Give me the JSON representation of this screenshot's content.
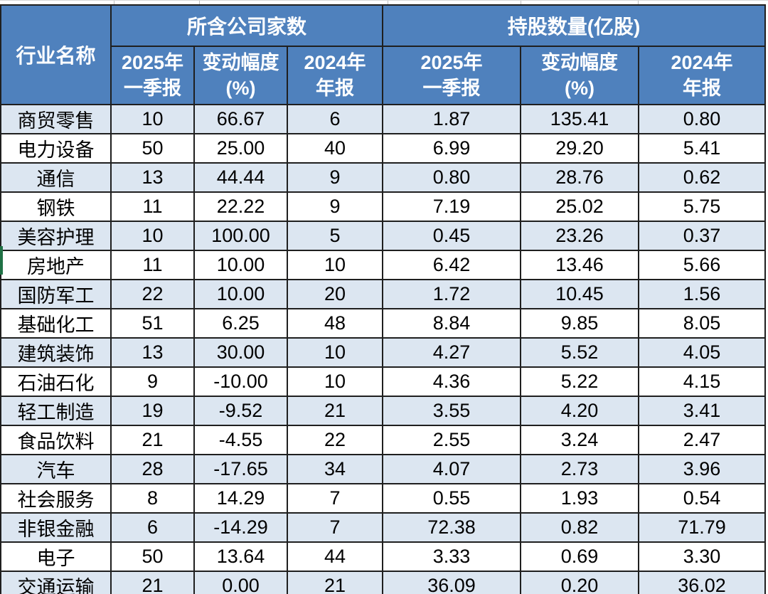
{
  "colors": {
    "header_bg": "#4F81BD",
    "header_text": "#FFFFFF",
    "row_alt_bg": "#DCE6F1",
    "row_bg": "#FFFFFF",
    "grid_border": "#1F1F1F",
    "cell_text": "#000000",
    "left_marker_green": "#1F7145",
    "outer_gridline": "#BFBFBF"
  },
  "table": {
    "corner_header": "行业名称",
    "groups": [
      {
        "label": "所含公司家数"
      },
      {
        "label": "持股数量(亿股)"
      }
    ],
    "sub_headers": [
      {
        "line1": "2025年",
        "line2": "一季报"
      },
      {
        "line1": "变动幅度",
        "line2": "(%)"
      },
      {
        "line1": "2024年",
        "line2": "年报"
      },
      {
        "line1": "2025年",
        "line2": "一季报"
      },
      {
        "line1": "变动幅度",
        "line2": "(%)"
      },
      {
        "line1": "2024年",
        "line2": "年报"
      }
    ],
    "rows": [
      {
        "industry": "商贸零售",
        "values": [
          "10",
          "66.67",
          "6",
          "1.87",
          "135.41",
          "0.80"
        ]
      },
      {
        "industry": "电力设备",
        "values": [
          "50",
          "25.00",
          "40",
          "6.99",
          "29.20",
          "5.41"
        ]
      },
      {
        "industry": "通信",
        "values": [
          "13",
          "44.44",
          "9",
          "0.80",
          "28.76",
          "0.62"
        ]
      },
      {
        "industry": "钢铁",
        "values": [
          "11",
          "22.22",
          "9",
          "7.19",
          "25.02",
          "5.75"
        ]
      },
      {
        "industry": "美容护理",
        "values": [
          "10",
          "100.00",
          "5",
          "0.45",
          "23.26",
          "0.37"
        ]
      },
      {
        "industry": "房地产",
        "values": [
          "11",
          "10.00",
          "10",
          "6.42",
          "13.46",
          "5.66"
        ]
      },
      {
        "industry": "国防军工",
        "values": [
          "22",
          "10.00",
          "20",
          "1.72",
          "10.45",
          "1.56"
        ]
      },
      {
        "industry": "基础化工",
        "values": [
          "51",
          "6.25",
          "48",
          "8.84",
          "9.85",
          "8.05"
        ]
      },
      {
        "industry": "建筑装饰",
        "values": [
          "13",
          "30.00",
          "10",
          "4.27",
          "5.52",
          "4.05"
        ]
      },
      {
        "industry": "石油石化",
        "values": [
          "9",
          "-10.00",
          "10",
          "4.36",
          "5.22",
          "4.15"
        ]
      },
      {
        "industry": "轻工制造",
        "values": [
          "19",
          "-9.52",
          "21",
          "3.55",
          "4.20",
          "3.41"
        ]
      },
      {
        "industry": "食品饮料",
        "values": [
          "21",
          "-4.55",
          "22",
          "2.55",
          "3.24",
          "2.47"
        ]
      },
      {
        "industry": "汽车",
        "values": [
          "28",
          "-17.65",
          "34",
          "4.07",
          "2.73",
          "3.96"
        ]
      },
      {
        "industry": "社会服务",
        "values": [
          "8",
          "14.29",
          "7",
          "0.55",
          "1.93",
          "0.54"
        ]
      },
      {
        "industry": "非银金融",
        "values": [
          "6",
          "-14.29",
          "7",
          "72.38",
          "0.82",
          "71.79"
        ]
      },
      {
        "industry": "电子",
        "values": [
          "50",
          "13.64",
          "44",
          "3.33",
          "0.69",
          "3.30"
        ]
      },
      {
        "industry": "交通运输",
        "values": [
          "21",
          "0.00",
          "21",
          "36.09",
          "0.20",
          "36.02"
        ]
      }
    ]
  }
}
